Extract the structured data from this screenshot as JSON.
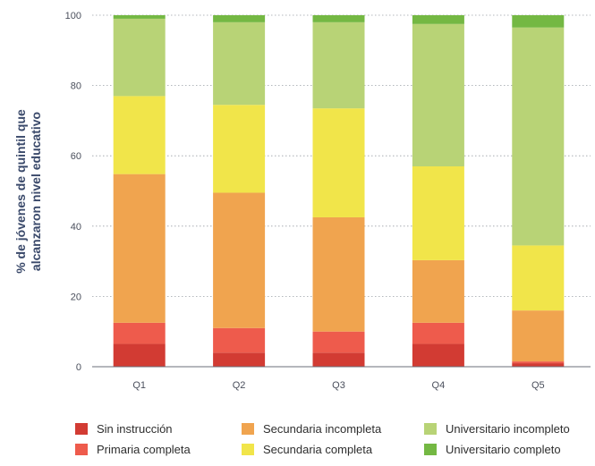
{
  "chart_data": {
    "type": "bar",
    "stacked": true,
    "title": "",
    "xlabel": "",
    "ylabel_lines": [
      "% de jóvenes de quintil que",
      "alcanzaron nivel educativo"
    ],
    "ylim": [
      0,
      100
    ],
    "yticks": [
      0,
      20,
      40,
      60,
      80,
      100
    ],
    "grid": "horizontal dotted",
    "legend_position": "bottom",
    "categories": [
      "Q1",
      "Q2",
      "Q3",
      "Q4",
      "Q5"
    ],
    "series": [
      {
        "name": "Sin instrucción",
        "color": "#d23b33",
        "values": [
          6.5,
          4.0,
          4.0,
          6.5,
          1.0
        ]
      },
      {
        "name": "Primaria completa",
        "color": "#ee5b4c",
        "values": [
          6.0,
          7.0,
          6.0,
          6.0,
          0.5
        ]
      },
      {
        "name": "Secundaria incompleta",
        "color": "#f0a44f",
        "values": [
          42.3,
          38.5,
          32.5,
          17.8,
          14.5
        ]
      },
      {
        "name": "Secundaria completa",
        "color": "#f1e54a",
        "values": [
          22.2,
          25.0,
          31.0,
          26.7,
          18.5
        ]
      },
      {
        "name": "Universitario incompleto",
        "color": "#b8d376",
        "values": [
          22.0,
          23.5,
          24.5,
          40.5,
          62.0
        ]
      },
      {
        "name": "Universitario completo",
        "color": "#74b843",
        "values": [
          1.0,
          2.0,
          2.0,
          2.5,
          3.5
        ]
      }
    ]
  }
}
